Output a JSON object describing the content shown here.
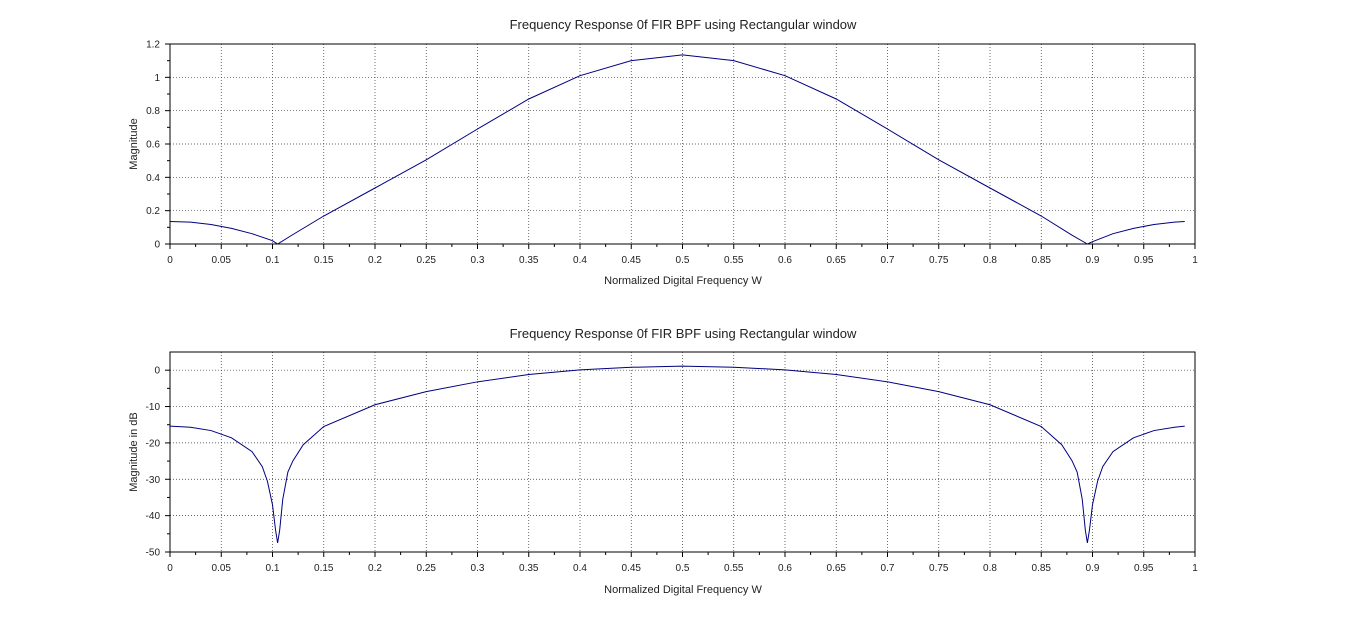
{
  "chart_data": [
    {
      "type": "line",
      "title": "Frequency Response 0f FIR BPF using Rectangular window",
      "xlabel": "Normalized Digital Frequency W",
      "ylabel": "Magnitude",
      "xlim": [
        0,
        1
      ],
      "ylim": [
        0,
        1.2
      ],
      "xticks": [
        "0",
        "0.05",
        "0.1",
        "0.15",
        "0.2",
        "0.25",
        "0.3",
        "0.35",
        "0.4",
        "0.45",
        "0.5",
        "0.55",
        "0.6",
        "0.65",
        "0.7",
        "0.75",
        "0.8",
        "0.85",
        "0.9",
        "0.95",
        "1"
      ],
      "yticks": [
        "0",
        "0.2",
        "0.4",
        "0.6",
        "0.8",
        "1",
        "1.2"
      ],
      "grid": true,
      "series": [
        {
          "color": "#000080",
          "x": [
            0,
            0.02,
            0.04,
            0.06,
            0.08,
            0.1,
            0.105,
            0.12,
            0.15,
            0.2,
            0.25,
            0.3,
            0.35,
            0.4,
            0.45,
            0.5,
            0.55,
            0.6,
            0.65,
            0.7,
            0.75,
            0.8,
            0.85,
            0.88,
            0.895,
            0.9,
            0.92,
            0.94,
            0.96,
            0.98,
            0.99
          ],
          "y": [
            0.135,
            0.131,
            0.117,
            0.094,
            0.062,
            0.02,
            0.0,
            0.057,
            0.168,
            0.336,
            0.505,
            0.69,
            0.87,
            1.01,
            1.1,
            1.135,
            1.1,
            1.01,
            0.87,
            0.69,
            0.505,
            0.336,
            0.168,
            0.053,
            0.0,
            0.014,
            0.062,
            0.094,
            0.117,
            0.131,
            0.135
          ]
        }
      ]
    },
    {
      "type": "line",
      "title": "Frequency Response 0f FIR BPF using Rectangular window",
      "xlabel": "Normalized Digital Frequency W",
      "ylabel": "Magnitude in dB",
      "xlim": [
        0,
        1
      ],
      "ylim": [
        -50,
        5
      ],
      "xticks": [
        "0",
        "0.05",
        "0.1",
        "0.15",
        "0.2",
        "0.25",
        "0.3",
        "0.35",
        "0.4",
        "0.45",
        "0.5",
        "0.55",
        "0.6",
        "0.65",
        "0.7",
        "0.75",
        "0.8",
        "0.85",
        "0.9",
        "0.95",
        "1"
      ],
      "yticks": [
        "0",
        "-10",
        "-20",
        "-30",
        "-40",
        "-50"
      ],
      "grid": true,
      "series": [
        {
          "color": "#000080",
          "x": [
            0,
            0.02,
            0.04,
            0.06,
            0.08,
            0.09,
            0.095,
            0.1,
            0.103,
            0.105,
            0.107,
            0.11,
            0.115,
            0.12,
            0.13,
            0.15,
            0.2,
            0.25,
            0.3,
            0.35,
            0.4,
            0.45,
            0.5,
            0.55,
            0.6,
            0.65,
            0.7,
            0.75,
            0.8,
            0.85,
            0.87,
            0.88,
            0.885,
            0.89,
            0.893,
            0.895,
            0.897,
            0.9,
            0.905,
            0.91,
            0.92,
            0.94,
            0.96,
            0.98,
            0.99
          ],
          "y": [
            -15.4,
            -15.7,
            -16.6,
            -18.6,
            -22.4,
            -26.5,
            -30.5,
            -37.0,
            -44.0,
            -47.5,
            -44.0,
            -35.5,
            -28.0,
            -24.9,
            -20.5,
            -15.5,
            -9.5,
            -5.9,
            -3.2,
            -1.2,
            0.1,
            0.8,
            1.1,
            0.8,
            0.1,
            -1.2,
            -3.2,
            -5.9,
            -9.5,
            -15.5,
            -20.5,
            -24.9,
            -28.0,
            -35.5,
            -44.0,
            -47.5,
            -44.0,
            -37.0,
            -30.5,
            -26.5,
            -22.4,
            -18.6,
            -16.6,
            -15.7,
            -15.4
          ]
        }
      ]
    }
  ]
}
